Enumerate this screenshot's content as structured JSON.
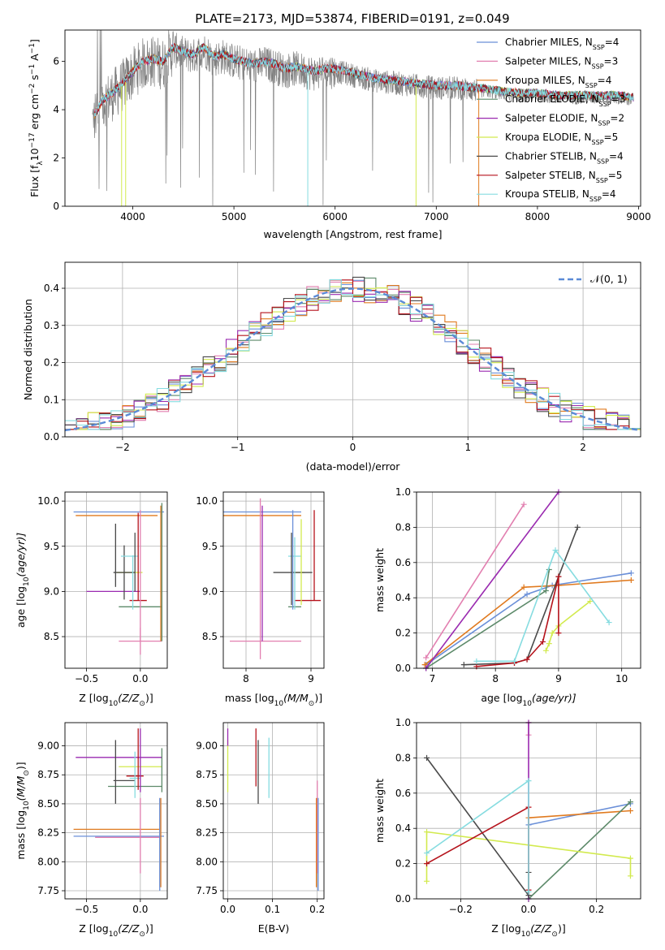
{
  "figure": {
    "title": "PLATE=2173, MJD=53874, FIBERID=0191, z=0.049"
  },
  "colors": {
    "Chabrier MILES": "#6a8fd8",
    "Salpeter MILES": "#e27fb0",
    "Kroupa MILES": "#e07a1f",
    "Chabrier ELODIE": "#5d8a6a",
    "Salpeter ELODIE": "#9a2ab0",
    "Kroupa ELODIE": "#d2ea4e",
    "Chabrier STELIB": "#4a4a4a",
    "Salpeter STELIB": "#b5121b",
    "Kroupa STELIB": "#86dce0",
    "data": "#808080",
    "gaussian": "#5b8ad6"
  },
  "chart_data": [
    {
      "id": "spectrum",
      "type": "line",
      "xlabel": "wavelength [Angstrom, rest frame]",
      "ylabel": "Flux [f",
      "ylabel_parts": [
        "Flux [f",
        "λ",
        "10",
        "−17",
        " erg cm",
        "−2",
        " s",
        "−1",
        " A",
        "−1",
        "]"
      ],
      "xlim": [
        3330,
        9020
      ],
      "ylim": [
        0,
        7.3
      ],
      "xticks": [
        4000,
        5000,
        6000,
        7000,
        8000,
        9000
      ],
      "yticks": [
        0,
        2,
        4,
        6
      ],
      "grid": false,
      "legend_position": "upper-right",
      "legend": [
        {
          "name": "Chabrier MILES",
          "nssp": "4"
        },
        {
          "name": "Salpeter MILES",
          "nssp": "3"
        },
        {
          "name": "Kroupa MILES",
          "nssp": "4"
        },
        {
          "name": "Chabrier ELODIE",
          "nssp": "3"
        },
        {
          "name": "Salpeter ELODIE",
          "nssp": "2"
        },
        {
          "name": "Kroupa ELODIE",
          "nssp": "5"
        },
        {
          "name": "Chabrier STELIB",
          "nssp": "4"
        },
        {
          "name": "Salpeter STELIB",
          "nssp": "5"
        },
        {
          "name": "Kroupa STELIB",
          "nssp": "4"
        }
      ],
      "continuum": {
        "x": [
          3600,
          3700,
          3800,
          3900,
          4000,
          4100,
          4200,
          4300,
          4400,
          4500,
          4600,
          4700,
          4800,
          4900,
          5000,
          5100,
          5200,
          5300,
          5400,
          5500,
          5600,
          5700,
          5800,
          5900,
          6000,
          6200,
          6400,
          6600,
          6800,
          7000,
          7200,
          7400,
          7600,
          7800,
          8000,
          8200,
          8400,
          8600,
          8800,
          8950
        ],
        "y": [
          3.5,
          4.3,
          4.6,
          5.0,
          5.5,
          5.9,
          6.0,
          5.9,
          6.5,
          6.3,
          6.2,
          6.5,
          6.1,
          6.2,
          6.0,
          5.9,
          5.8,
          5.9,
          5.8,
          5.6,
          5.7,
          5.6,
          5.5,
          5.6,
          5.6,
          5.4,
          5.2,
          5.1,
          5.0,
          4.9,
          4.9,
          4.8,
          4.7,
          4.6,
          4.6,
          4.5,
          4.5,
          4.5,
          4.5,
          4.4
        ]
      }
    },
    {
      "id": "residuals",
      "type": "histogram",
      "xlabel": "(data-model)/error",
      "ylabel": "Normed distribution",
      "xlim": [
        -2.5,
        2.5
      ],
      "ylim": [
        0,
        0.47
      ],
      "xticks": [
        -2,
        -1,
        0,
        1,
        2
      ],
      "yticks": [
        0.0,
        0.1,
        0.2,
        0.3,
        0.4
      ],
      "grid": true,
      "bins": 50,
      "legend_position": "upper-right",
      "gaussian_label": "𝒩(0, 1)",
      "gaussian": {
        "mean": 0,
        "sigma": 1
      }
    },
    {
      "id": "age_vs_Z",
      "type": "errorbar",
      "xlabel_parts": [
        "Z [log",
        "10",
        "(Z/Z",
        "⊙",
        ")]"
      ],
      "ylabel_parts": [
        "age  [log",
        "10",
        "(age/yr)]"
      ],
      "xlim": [
        -0.7,
        0.25
      ],
      "ylim": [
        8.15,
        10.1
      ],
      "xticks": [
        -0.5,
        0.0
      ],
      "yticks": [
        8.5,
        9.0,
        9.5,
        10.0
      ],
      "grid": true,
      "points": [
        {
          "model": "Chabrier MILES",
          "x": -0.2,
          "xerr": 0.42,
          "y": 9.88,
          "yerr": 0.0
        },
        {
          "model": "Salpeter MILES",
          "x": 0.0,
          "xerr": 0.2,
          "y": 8.45,
          "yerr": 0.15
        },
        {
          "model": "Kroupa MILES",
          "x": -0.22,
          "xerr": 0.38,
          "y": 9.84,
          "yerr": 0.0
        },
        {
          "model": "Chabrier ELODIE",
          "x": 0.0,
          "xerr": 0.2,
          "y": 8.83,
          "yerr": 0.0
        },
        {
          "model": "Salpeter ELODIE",
          "x": -0.25,
          "xerr": 0.25,
          "y": 9.0,
          "yerr": 0.0
        },
        {
          "model": "Kroupa ELODIE",
          "x": -0.1,
          "xerr": 0.12,
          "y": 9.21,
          "yerr": 0.0
        },
        {
          "model": "Chabrier STELIB",
          "x": -0.15,
          "xerr": 0.1,
          "y": 9.21,
          "yerr": 0.3
        },
        {
          "model": "Salpeter STELIB",
          "x": -0.02,
          "xerr": 0.08,
          "y": 8.9,
          "yerr": 0.0
        },
        {
          "model": "Kroupa STELIB",
          "x": -0.1,
          "xerr": 0.08,
          "y": 9.39,
          "yerr": 0.0
        }
      ],
      "vlines": [
        {
          "model": "Salpeter MILES",
          "x": 0.0,
          "y0": 8.45,
          "y1": 9.9
        },
        {
          "model": "Kroupa MILES",
          "x": 0.19,
          "y0": 8.45,
          "y1": 9.95
        },
        {
          "model": "Chabrier ELODIE",
          "x": 0.2,
          "y0": 8.45,
          "y1": 9.98
        },
        {
          "model": "Salpeter STELIB",
          "x": -0.02,
          "y0": 8.9,
          "y1": 9.87
        },
        {
          "model": "Chabrier STELIB",
          "x": -0.23,
          "y0": 9.05,
          "y1": 9.75
        },
        {
          "model": "Chabrier STELIB",
          "x": -0.05,
          "y0": 9.0,
          "y1": 9.65
        },
        {
          "model": "Kroupa STELIB",
          "x": -0.07,
          "y0": 8.8,
          "y1": 9.4
        }
      ]
    },
    {
      "id": "age_vs_mass",
      "type": "errorbar",
      "xlabel_parts": [
        "mass [log",
        "10",
        "(M/M",
        "⊙",
        ")]"
      ],
      "xlim": [
        7.65,
        9.2
      ],
      "ylim": [
        8.15,
        10.1
      ],
      "xticks": [
        8,
        9
      ],
      "yticks": [
        8.5,
        9.0,
        9.5,
        10.0
      ],
      "grid": true,
      "points": [
        {
          "model": "Chabrier MILES",
          "x": 8.25,
          "xerr": 0.6,
          "y": 9.88
        },
        {
          "model": "Salpeter MILES",
          "x": 8.3,
          "xerr": 0.55,
          "y": 8.45
        },
        {
          "model": "Kroupa MILES",
          "x": 8.25,
          "xerr": 0.6,
          "y": 9.84
        },
        {
          "model": "Chabrier ELODIE",
          "x": 8.75,
          "xerr": 0.1,
          "y": 8.83
        },
        {
          "model": "Salpeter ELODIE",
          "x": 9.0,
          "xerr": 0.0,
          "y": 9.0
        },
        {
          "model": "Kroupa ELODIE",
          "x": 8.8,
          "xerr": 0.1,
          "y": 9.21
        },
        {
          "model": "Chabrier STELIB",
          "x": 8.72,
          "xerr": 0.3,
          "y": 9.21
        },
        {
          "model": "Salpeter STELIB",
          "x": 8.95,
          "xerr": 0.2,
          "y": 8.9
        },
        {
          "model": "Kroupa STELIB",
          "x": 8.75,
          "xerr": 0.1,
          "y": 9.39
        }
      ],
      "vlines": [
        {
          "model": "Salpeter MILES",
          "x": 8.22,
          "y0": 8.25,
          "y1": 10.03
        },
        {
          "model": "Salpeter ELODIE",
          "x": 8.25,
          "y0": 8.45,
          "y1": 9.95
        },
        {
          "model": "Chabrier MILES",
          "x": 8.72,
          "y0": 8.8,
          "y1": 9.9
        },
        {
          "model": "Chabrier STELIB",
          "x": 8.7,
          "y0": 8.85,
          "y1": 9.65
        },
        {
          "model": "Kroupa ELODIE",
          "x": 8.85,
          "y0": 8.85,
          "y1": 9.8
        },
        {
          "model": "Kroupa STELIB",
          "x": 8.75,
          "y0": 8.8,
          "y1": 9.6
        },
        {
          "model": "Salpeter STELIB",
          "x": 9.05,
          "y0": 8.9,
          "y1": 9.9
        }
      ]
    },
    {
      "id": "weight_vs_age",
      "type": "line",
      "xlabel_parts": [
        "age  [log",
        "10",
        "(age/yr)]"
      ],
      "ylabel": "mass weight",
      "xlim": [
        6.75,
        10.3
      ],
      "ylim": [
        0,
        1.0
      ],
      "xticks": [
        7,
        8,
        9,
        10
      ],
      "yticks": [
        0.0,
        0.2,
        0.4,
        0.6,
        0.8,
        1.0
      ],
      "grid": true,
      "series": [
        {
          "model": "Chabrier MILES",
          "x": [
            6.9,
            8.5,
            8.9,
            10.15
          ],
          "y": [
            0.02,
            0.42,
            0.47,
            0.54
          ]
        },
        {
          "model": "Salpeter MILES",
          "x": [
            6.9,
            8.45
          ],
          "y": [
            0.06,
            0.93
          ]
        },
        {
          "model": "Kroupa MILES",
          "x": [
            6.88,
            8.45,
            9.0,
            10.15
          ],
          "y": [
            0.02,
            0.46,
            0.47,
            0.5
          ]
        },
        {
          "model": "Chabrier ELODIE",
          "x": [
            6.9,
            8.8,
            8.85
          ],
          "y": [
            0.0,
            0.44,
            0.56
          ]
        },
        {
          "model": "Salpeter ELODIE",
          "x": [
            6.9,
            9.0
          ],
          "y": [
            0.0,
            1.0
          ]
        },
        {
          "model": "Kroupa ELODIE",
          "x": [
            8.8,
            8.85,
            8.9,
            9.0,
            9.5
          ],
          "y": [
            0.1,
            0.14,
            0.2,
            0.24,
            0.38
          ]
        },
        {
          "model": "Chabrier STELIB",
          "x": [
            7.5,
            8.3,
            8.5,
            9.0,
            9.3
          ],
          "y": [
            0.02,
            0.03,
            0.05,
            0.52,
            0.8
          ]
        },
        {
          "model": "Salpeter STELIB",
          "x": [
            7.7,
            8.3,
            8.5,
            8.75,
            9.0,
            9.0
          ],
          "y": [
            0.01,
            0.03,
            0.05,
            0.15,
            0.52,
            0.2
          ]
        },
        {
          "model": "Kroupa STELIB",
          "x": [
            7.7,
            8.3,
            8.95,
            9.8
          ],
          "y": [
            0.04,
            0.04,
            0.67,
            0.26
          ]
        }
      ]
    },
    {
      "id": "mass_vs_Z",
      "type": "errorbar",
      "xlabel_parts": [
        "Z [log",
        "10",
        "(Z/Z",
        "⊙",
        ")]"
      ],
      "ylabel_parts": [
        "mass [log",
        "10",
        "(M/M",
        "⊙",
        ")]"
      ],
      "xlim": [
        -0.7,
        0.25
      ],
      "ylim": [
        7.68,
        9.2
      ],
      "xticks": [
        -0.5,
        0.0
      ],
      "yticks": [
        7.75,
        8.0,
        8.25,
        8.5,
        8.75,
        9.0
      ],
      "grid": true,
      "points": [
        {
          "model": "Chabrier MILES",
          "x": -0.2,
          "xerr": 0.42,
          "y": 8.22
        },
        {
          "model": "Salpeter MILES",
          "x": -0.12,
          "xerr": 0.3,
          "y": 8.21
        },
        {
          "model": "Kroupa MILES",
          "x": -0.22,
          "xerr": 0.4,
          "y": 8.28
        },
        {
          "model": "Chabrier ELODIE",
          "x": -0.05,
          "xerr": 0.25,
          "y": 8.65
        },
        {
          "model": "Salpeter ELODIE",
          "x": -0.2,
          "xerr": 0.4,
          "y": 8.9
        },
        {
          "model": "Kroupa ELODIE",
          "x": 0.0,
          "xerr": 0.2,
          "y": 8.82
        },
        {
          "model": "Chabrier STELIB",
          "x": -0.15,
          "xerr": 0.1,
          "y": 8.7
        },
        {
          "model": "Salpeter STELIB",
          "x": -0.05,
          "xerr": 0.08,
          "y": 8.74
        },
        {
          "model": "Kroupa STELIB",
          "x": -0.05,
          "xerr": 0.05,
          "y": 8.72
        }
      ],
      "vlines": [
        {
          "model": "Chabrier MILES",
          "x": 0.18,
          "y0": 7.75,
          "y1": 8.55
        },
        {
          "model": "Salpeter MILES",
          "x": 0.0,
          "y0": 7.9,
          "y1": 8.55
        },
        {
          "model": "Kroupa MILES",
          "x": 0.19,
          "y0": 7.78,
          "y1": 8.55
        },
        {
          "model": "Chabrier ELODIE",
          "x": 0.2,
          "y0": 8.6,
          "y1": 8.98
        },
        {
          "model": "Salpeter ELODIE",
          "x": 0.0,
          "y0": 8.6,
          "y1": 9.15
        },
        {
          "model": "Chabrier STELIB",
          "x": -0.23,
          "y0": 8.5,
          "y1": 9.05
        },
        {
          "model": "Salpeter STELIB",
          "x": -0.02,
          "y0": 8.62,
          "y1": 9.15
        },
        {
          "model": "Kroupa STELIB",
          "x": -0.05,
          "y0": 8.55,
          "y1": 8.95
        }
      ]
    },
    {
      "id": "mass_vs_ebv",
      "type": "errorbar",
      "xlabel": "E(B-V)",
      "xlim": [
        -0.01,
        0.215
      ],
      "ylim": [
        7.68,
        9.2
      ],
      "xticks": [
        0.0,
        0.1,
        0.2
      ],
      "yticks": [
        7.75,
        8.0,
        8.25,
        8.5,
        8.75,
        9.0
      ],
      "grid": true,
      "vlines": [
        {
          "model": "Kroupa ELODIE",
          "x": 0.0,
          "y0": 8.6,
          "y1": 9.05
        },
        {
          "model": "Salpeter ELODIE",
          "x": 0.0,
          "y0": 9.0,
          "y1": 9.15
        },
        {
          "model": "Salpeter STELIB",
          "x": 0.063,
          "y0": 8.65,
          "y1": 9.15
        },
        {
          "model": "Chabrier STELIB",
          "x": 0.068,
          "y0": 8.5,
          "y1": 9.05
        },
        {
          "model": "Kroupa STELIB",
          "x": 0.092,
          "y0": 8.55,
          "y1": 9.07
        },
        {
          "model": "Salpeter MILES",
          "x": 0.2,
          "y0": 7.9,
          "y1": 8.7
        },
        {
          "model": "Kroupa MILES",
          "x": 0.198,
          "y0": 7.78,
          "y1": 8.55
        },
        {
          "model": "Chabrier MILES",
          "x": 0.202,
          "y0": 7.75,
          "y1": 8.55
        }
      ]
    },
    {
      "id": "weight_vs_Z",
      "type": "line",
      "xlabel_parts": [
        "Z [log",
        "10",
        "(Z/Z",
        "⊙",
        ")]"
      ],
      "ylabel": "mass weight",
      "xlim": [
        -0.33,
        0.33
      ],
      "ylim": [
        0,
        1.0
      ],
      "xticks": [
        -0.2,
        0.0,
        0.2
      ],
      "yticks": [
        0.0,
        0.2,
        0.4,
        0.6,
        0.8,
        1.0
      ],
      "grid": true,
      "series": [
        {
          "model": "Chabrier MILES",
          "x": [
            0.0,
            0.3
          ],
          "y": [
            0.42,
            0.54
          ]
        },
        {
          "model": "Salpeter MILES",
          "x": [
            0.0,
            0.0
          ],
          "y": [
            0.93,
            1.0
          ]
        },
        {
          "model": "Kroupa MILES",
          "x": [
            0.0,
            0.3
          ],
          "y": [
            0.46,
            0.5
          ]
        },
        {
          "model": "Chabrier ELODIE",
          "x": [
            0.0,
            0.3
          ],
          "y": [
            0.0,
            0.55
          ]
        },
        {
          "model": "Salpeter ELODIE",
          "x": [
            0.0,
            0.0
          ],
          "y": [
            0.0,
            1.0
          ]
        },
        {
          "model": "Kroupa ELODIE",
          "x": [
            -0.3,
            -0.3,
            0.3,
            0.3
          ],
          "y": [
            0.1,
            0.38,
            0.23,
            0.13
          ]
        },
        {
          "model": "Chabrier STELIB",
          "x": [
            -0.3,
            0.0,
            0.0
          ],
          "y": [
            0.8,
            0.02,
            0.15
          ]
        },
        {
          "model": "Salpeter STELIB",
          "x": [
            -0.3,
            0.0,
            0.0
          ],
          "y": [
            0.2,
            0.52,
            0.05
          ]
        },
        {
          "model": "Kroupa STELIB",
          "x": [
            -0.3,
            0.0,
            0.0
          ],
          "y": [
            0.26,
            0.67,
            0.04
          ]
        }
      ]
    }
  ]
}
